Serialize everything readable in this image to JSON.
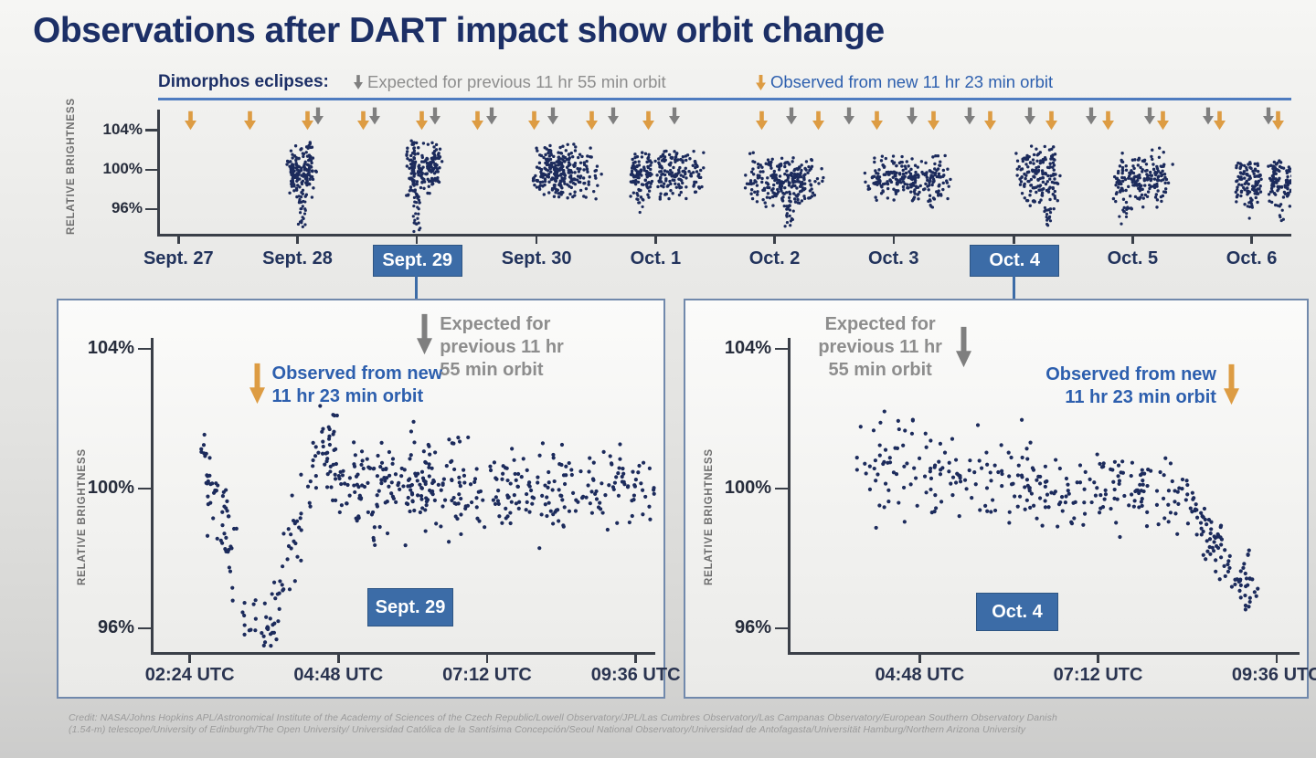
{
  "page": {
    "title": "Observations after DART impact show orbit change"
  },
  "legend": {
    "label": "Dimorphos eclipses:",
    "expected": "Expected for previous 11 hr 55 min orbit",
    "observed": "Observed from new 11 hr 23 min orbit"
  },
  "credit": {
    "line1": "Credit: NASA/Johns Hopkins APL/Astronomical Institute of the Academy of Sciences of the Czech Republic/Lowell Observatory/JPL/Las Cumbres Observatory/Las Campanas Observatory/European Southern Observatory Danish",
    "line2": "(1.54-m) telescope/University of Edinburgh/The Open University/ Universidad Católica de la Santísima Concepción/Seoul National Observatory/Universidad de Antofagasta/Universität Hamburg/Northern Arizona University"
  },
  "colors": {
    "navy": "#1c2f66",
    "date": "#22335c",
    "blue": "#2d5fae",
    "gray_text": "#8d8d8d",
    "orange": "#dd9c43",
    "gray_arrow": "#7f7f7f",
    "dot": "#1c2b5c",
    "badge": "#3c6ca7",
    "panel_border": "#7189ac",
    "rule": "#4f7cc0",
    "axis": "#3a3f48",
    "tick_text": "#2a3450"
  },
  "chart_data": [
    {
      "id": "eclipse-timeline",
      "type": "scatter",
      "title": "Dimorphos relative brightness, Sept. 27 - Oct. 6",
      "ylabel": "RELATIVE BRIGHTNESS",
      "yticks": [
        "104%",
        "100%",
        "96%"
      ],
      "ytick_values": [
        104,
        100,
        96
      ],
      "ylim": [
        93.4,
        107.3
      ],
      "xticks": [
        {
          "label": "Sept. 27",
          "x": 0.018,
          "highlight": false
        },
        {
          "label": "Sept. 28",
          "x": 0.123,
          "highlight": false
        },
        {
          "label": "Sept. 29",
          "x": 0.228,
          "highlight": true
        },
        {
          "label": "Sept. 30",
          "x": 0.334,
          "highlight": false
        },
        {
          "label": "Oct. 1",
          "x": 0.439,
          "highlight": false
        },
        {
          "label": "Oct. 2",
          "x": 0.544,
          "highlight": false
        },
        {
          "label": "Oct. 3",
          "x": 0.649,
          "highlight": false
        },
        {
          "label": "Oct. 4",
          "x": 0.755,
          "highlight": true
        },
        {
          "label": "Oct. 5",
          "x": 0.86,
          "highlight": false
        },
        {
          "label": "Oct. 6",
          "x": 0.965,
          "highlight": false
        }
      ],
      "arrows": [
        {
          "x": 0.029,
          "kind": "observed"
        },
        {
          "x": 0.081,
          "kind": "observed"
        },
        {
          "x": 0.132,
          "kind": "observed"
        },
        {
          "x": 0.141,
          "kind": "expected"
        },
        {
          "x": 0.181,
          "kind": "observed"
        },
        {
          "x": 0.191,
          "kind": "expected"
        },
        {
          "x": 0.233,
          "kind": "observed"
        },
        {
          "x": 0.244,
          "kind": "expected"
        },
        {
          "x": 0.282,
          "kind": "observed"
        },
        {
          "x": 0.294,
          "kind": "expected"
        },
        {
          "x": 0.332,
          "kind": "observed"
        },
        {
          "x": 0.348,
          "kind": "expected"
        },
        {
          "x": 0.383,
          "kind": "observed"
        },
        {
          "x": 0.402,
          "kind": "expected"
        },
        {
          "x": 0.433,
          "kind": "observed"
        },
        {
          "x": 0.456,
          "kind": "expected"
        },
        {
          "x": 0.533,
          "kind": "observed"
        },
        {
          "x": 0.559,
          "kind": "expected"
        },
        {
          "x": 0.583,
          "kind": "observed"
        },
        {
          "x": 0.61,
          "kind": "expected"
        },
        {
          "x": 0.634,
          "kind": "observed"
        },
        {
          "x": 0.665,
          "kind": "expected"
        },
        {
          "x": 0.684,
          "kind": "observed"
        },
        {
          "x": 0.716,
          "kind": "expected"
        },
        {
          "x": 0.734,
          "kind": "observed"
        },
        {
          "x": 0.769,
          "kind": "expected"
        },
        {
          "x": 0.788,
          "kind": "observed"
        },
        {
          "x": 0.823,
          "kind": "expected"
        },
        {
          "x": 0.838,
          "kind": "observed"
        },
        {
          "x": 0.875,
          "kind": "expected"
        },
        {
          "x": 0.887,
          "kind": "observed"
        },
        {
          "x": 0.927,
          "kind": "expected"
        },
        {
          "x": 0.937,
          "kind": "observed"
        },
        {
          "x": 0.98,
          "kind": "expected"
        },
        {
          "x": 0.988,
          "kind": "observed"
        }
      ],
      "clusters": [
        {
          "x0": 0.115,
          "x1": 0.137,
          "hi": 103.2,
          "lo": 97.2,
          "n": 150,
          "cols": 4,
          "tails": [
            {
              "x": 0.1265,
              "to": 94.3,
              "n": 24
            }
          ]
        },
        {
          "x0": 0.219,
          "x1": 0.249,
          "hi": 103.4,
          "lo": 97.3,
          "n": 190,
          "cols": 5,
          "tails": [
            {
              "x": 0.2285,
              "to": 93.9,
              "n": 26
            }
          ]
        },
        {
          "x0": 0.331,
          "x1": 0.381,
          "hi": 103.3,
          "lo": 97.0,
          "n": 260,
          "cols": 6,
          "tails": []
        },
        {
          "x0": 0.415,
          "x1": 0.436,
          "hi": 102.5,
          "lo": 97.0,
          "n": 100,
          "cols": 3,
          "tails": [
            {
              "x": 0.4255,
              "to": 95.9,
              "n": 8
            }
          ]
        },
        {
          "x0": 0.441,
          "x1": 0.477,
          "hi": 102.7,
          "lo": 96.9,
          "n": 150,
          "cols": 4,
          "tails": []
        },
        {
          "x0": 0.522,
          "x1": 0.583,
          "hi": 102.3,
          "lo": 96.3,
          "n": 240,
          "cols": 6,
          "tails": [
            {
              "x": 0.5565,
              "to": 94.3,
              "n": 20
            }
          ]
        },
        {
          "x0": 0.628,
          "x1": 0.69,
          "hi": 102.1,
          "lo": 96.9,
          "n": 240,
          "cols": 6,
          "tails": [
            {
              "x": 0.6835,
              "to": 95.7,
              "n": 5
            }
          ]
        },
        {
          "x0": 0.762,
          "x1": 0.792,
          "hi": 103.2,
          "lo": 96.1,
          "n": 160,
          "cols": 4,
          "tails": [
            {
              "x": 0.7845,
              "to": 94.3,
              "n": 16
            }
          ]
        },
        {
          "x0": 0.846,
          "x1": 0.888,
          "hi": 102.5,
          "lo": 96.1,
          "n": 180,
          "cols": 5,
          "tails": [
            {
              "x": 0.8525,
              "to": 94.7,
              "n": 12
            }
          ]
        },
        {
          "x0": 0.951,
          "x1": 0.974,
          "hi": 101.5,
          "lo": 96.6,
          "n": 100,
          "cols": 3,
          "tails": [
            {
              "x": 0.9625,
              "to": 95.3,
              "n": 7
            }
          ]
        },
        {
          "x0": 0.98,
          "x1": 1.0,
          "hi": 101.5,
          "lo": 96.4,
          "n": 95,
          "cols": 3,
          "tails": [
            {
              "x": 0.99,
              "to": 95.1,
              "n": 7
            }
          ]
        }
      ]
    },
    {
      "id": "sept29-detail",
      "type": "scatter",
      "badge": "Sept. 29",
      "ylabel": "RELATIVE BRIGHTNESS",
      "yticks": [
        "104%",
        "100%",
        "96%"
      ],
      "ytick_values": [
        104,
        100,
        96
      ],
      "xticks": [
        "02:24 UTC",
        "04:48 UTC",
        "07:12 UTC",
        "09:36 UTC"
      ],
      "xtick_hours": [
        2.4,
        4.8,
        7.2,
        9.6
      ],
      "xlim_hours": [
        1.8,
        9.93
      ],
      "ylim": [
        95.3,
        104.3
      ],
      "annotations": {
        "observed": {
          "lines": [
            "Observed from new",
            "11 hr 23 min orbit"
          ],
          "arrow_hour": 3.49
        },
        "expected": {
          "lines": [
            "Expected for",
            "previous 11 hr",
            "55 min orbit"
          ],
          "arrow_hour": 6.2
        }
      },
      "segments": [
        {
          "h0": 2.58,
          "h1": 3.2,
          "v0": 100.8,
          "v1": 97.3,
          "sd": 0.6,
          "n": 55
        },
        {
          "h0": 3.2,
          "h1": 3.7,
          "v0": 96.6,
          "v1": 95.6,
          "sd": 0.55,
          "n": 28
        },
        {
          "h0": 3.7,
          "h1": 4.35,
          "v0": 96.0,
          "v1": 100.0,
          "sd": 0.7,
          "n": 45
        },
        {
          "h0": 4.35,
          "h1": 4.75,
          "v0": 100.6,
          "v1": 100.9,
          "sd": 0.55,
          "n": 30
        },
        {
          "h0": 4.4,
          "h1": 4.8,
          "v0": 101.6,
          "v1": 101.8,
          "sd": 0.3,
          "n": 8
        },
        {
          "h0": 4.75,
          "h1": 7.35,
          "v0": 100.1,
          "v1": 100.0,
          "sd": 0.5,
          "n": 200
        },
        {
          "h0": 5.8,
          "h1": 7.1,
          "v0": 101.4,
          "v1": 101.3,
          "sd": 0.25,
          "n": 12
        },
        {
          "h0": 7.35,
          "h1": 9.93,
          "v0": 99.9,
          "v1": 100.1,
          "sd": 0.55,
          "n": 160
        },
        {
          "h0": 5.0,
          "h1": 9.5,
          "v0": 98.7,
          "v1": 98.8,
          "sd": 0.3,
          "n": 12
        }
      ]
    },
    {
      "id": "oct4-detail",
      "type": "scatter",
      "badge": "Oct. 4",
      "ylabel": "RELATIVE BRIGHTNESS",
      "yticks": [
        "104%",
        "100%",
        "96%"
      ],
      "ytick_values": [
        104,
        100,
        96
      ],
      "xticks": [
        "04:48 UTC",
        "07:12 UTC",
        "09:36 UTC"
      ],
      "xtick_hours": [
        4.8,
        7.2,
        9.6
      ],
      "xlim_hours": [
        3.05,
        9.91
      ],
      "ylim": [
        95.3,
        104.3
      ],
      "annotations": {
        "expected": {
          "lines": [
            "Expected for",
            "previous 11 hr",
            "55 min orbit"
          ],
          "arrow_hour": 5.4
        },
        "observed": {
          "lines": [
            "Observed from new",
            "11 hr 23 min orbit"
          ],
          "arrow_hour": 9.0
        }
      },
      "segments": [
        {
          "h0": 3.95,
          "h1": 8.35,
          "v0": 100.2,
          "v1": 100.0,
          "sd": 0.5,
          "n": 235
        },
        {
          "h0": 4.0,
          "h1": 6.4,
          "v0": 101.3,
          "v1": 101.1,
          "sd": 0.4,
          "n": 24
        },
        {
          "h0": 4.1,
          "h1": 5.0,
          "v0": 102.3,
          "v1": 102.0,
          "sd": 0.3,
          "n": 5
        },
        {
          "h0": 6.6,
          "h1": 8.3,
          "v0": 99.1,
          "v1": 99.2,
          "sd": 0.25,
          "n": 10
        },
        {
          "h0": 8.35,
          "h1": 9.25,
          "v0": 99.9,
          "v1": 96.9,
          "sd": 0.4,
          "n": 85
        },
        {
          "h0": 9.2,
          "h1": 9.4,
          "v0": 98.3,
          "v1": 98.1,
          "sd": 0.15,
          "n": 3
        },
        {
          "h0": 9.15,
          "h1": 9.35,
          "v0": 96.9,
          "v1": 97.2,
          "sd": 0.25,
          "n": 8
        }
      ]
    }
  ]
}
